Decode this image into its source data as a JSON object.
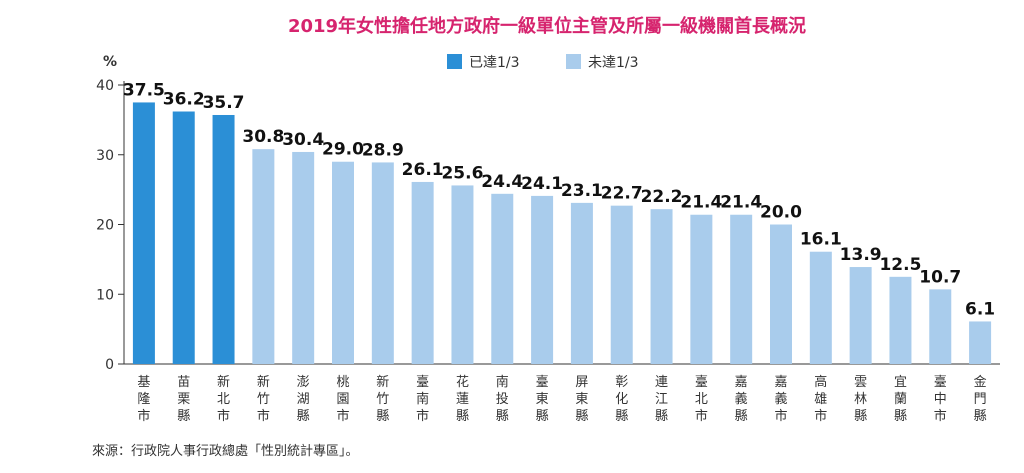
{
  "chart_data": {
    "type": "bar",
    "title": "2019年女性擔任地方政府一級單位主管及所屬一級機關首長概況",
    "ylabel": "%",
    "ylim": [
      0,
      40
    ],
    "yticks": [
      0,
      10,
      20,
      30,
      40
    ],
    "grid": false,
    "legend_position": "top",
    "categories": [
      "基隆市",
      "苗栗縣",
      "新北市",
      "新竹市",
      "澎湖縣",
      "桃園市",
      "新竹縣",
      "臺南市",
      "花蓮縣",
      "南投縣",
      "臺東縣",
      "屏東縣",
      "彰化縣",
      "連江縣",
      "臺北市",
      "嘉義縣",
      "嘉義市",
      "高雄市",
      "雲林縣",
      "宜蘭縣",
      "臺中市",
      "金門縣"
    ],
    "values": [
      37.5,
      36.2,
      35.7,
      30.8,
      30.4,
      29.0,
      28.9,
      26.1,
      25.6,
      24.4,
      24.1,
      23.1,
      22.7,
      22.2,
      21.4,
      21.4,
      20.0,
      16.1,
      13.9,
      12.5,
      10.7,
      6.1
    ],
    "value_labels": [
      "37.5",
      "36.2",
      "35.7",
      "30.8",
      "30.4",
      "29.0",
      "28.9",
      "26.1",
      "25.6",
      "24.4",
      "24.1",
      "23.1",
      "22.7",
      "22.2",
      "21.4",
      "21.4",
      "20.0",
      "16.1",
      "13.9",
      "12.5",
      "10.7",
      "6.1"
    ],
    "series": [
      {
        "name": "已達1/3",
        "color": "#2b8fd6",
        "categories": [
          "基隆市",
          "苗栗縣",
          "新北市"
        ]
      },
      {
        "name": "未達1/3",
        "color": "#a9ccec",
        "categories": [
          "新竹市",
          "澎湖縣",
          "桃園市",
          "新竹縣",
          "臺南市",
          "花蓮縣",
          "南投縣",
          "臺東縣",
          "屏東縣",
          "彰化縣",
          "連江縣",
          "臺北市",
          "嘉義縣",
          "嘉義市",
          "高雄市",
          "雲林縣",
          "宜蘭縣",
          "臺中市",
          "金門縣"
        ]
      }
    ]
  },
  "source": "來源：行政院人事行政總處「性別統計專區」。",
  "colors": {
    "title": "#d6246e",
    "axis": "#333333",
    "reached": "#2b8fd6",
    "not_reached": "#a9ccec"
  }
}
